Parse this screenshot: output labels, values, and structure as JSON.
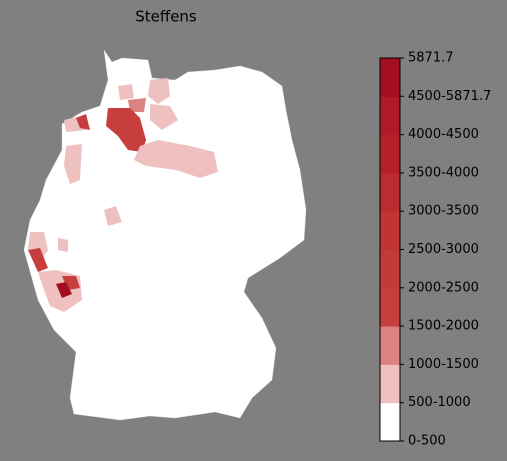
{
  "title": "Steffens",
  "colorbar": {
    "labels": [
      "0-500",
      "500-1000",
      "1000-1500",
      "1500-2000",
      "2000-2500",
      "2500-3000",
      "3000-3500",
      "3500-4000",
      "4000-4500",
      "4500-5871.7",
      "5871.7"
    ],
    "colors": [
      "#ffffff",
      "#efc0c0",
      "#dc8282",
      "#c63e3e",
      "#c43a3a",
      "#c03434",
      "#bb2c30",
      "#b52329",
      "#ae1a25",
      "#a30f20"
    ]
  }
}
